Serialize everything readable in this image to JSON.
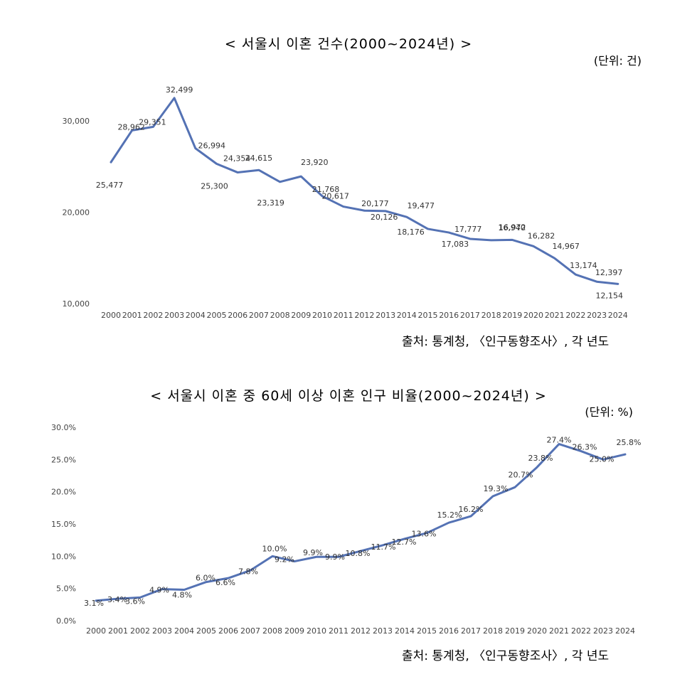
{
  "charts": {
    "divorce": {
      "title": "< 서울시 이혼 건수(2000~2024년) >",
      "unit": "(단위: 건)",
      "source": "출처: 통계청, 〈인구동향조사〉, 각 년도"
    },
    "elderly": {
      "title": "< 서울시 이혼 중 60세 이상 이혼 인구 비율(2000~2024년) >",
      "unit": "(단위: %)",
      "source": "출처: 통계청, 〈인구동향조사〉, 각 년도"
    }
  },
  "chart_data": [
    {
      "type": "line",
      "title": "< 서울시 이혼 건수(2000~2024년) >",
      "unit": "(단위: 건)",
      "categories": [
        "2000",
        "2001",
        "2002",
        "2003",
        "2004",
        "2005",
        "2006",
        "2007",
        "2008",
        "2009",
        "2010",
        "2011",
        "2012",
        "2013",
        "2014",
        "2015",
        "2016",
        "2017",
        "2018",
        "2019",
        "2020",
        "2021",
        "2022",
        "2023",
        "2024"
      ],
      "values": [
        25477,
        28962,
        29351,
        32499,
        26994,
        25300,
        24354,
        24615,
        23319,
        23920,
        21768,
        20617,
        20177,
        20126,
        19477,
        18176,
        17777,
        17083,
        16940,
        16972,
        16282,
        14967,
        13174,
        12397,
        12154
      ],
      "data_labels": [
        "25,477",
        "28,962",
        "29,351",
        "32,499",
        "26,994",
        "25,300",
        "24,354",
        "24,615",
        "23,319",
        "23,920",
        "21,768",
        "20,617",
        "20,177",
        "20,126",
        "19,477",
        "18,176",
        "17,777",
        "17,083",
        "16,940",
        "16,972",
        "16,282",
        "14,967",
        "13,174",
        "12,397",
        "12,154"
      ],
      "y_ticks": [
        10000,
        20000,
        30000
      ],
      "y_tick_labels": [
        "10,000",
        "20,000",
        "30,000"
      ],
      "ylim": [
        10000,
        30000
      ],
      "grid": false,
      "legend": "none",
      "line_color": "#5472B4"
    },
    {
      "type": "line",
      "title": "< 서울시 이혼 중 60세 이상 이혼 인구 비율(2000~2024년) >",
      "unit": "(단위: %)",
      "categories": [
        "2000",
        "2001",
        "2002",
        "2003",
        "2004",
        "2005",
        "2006",
        "2007",
        "2008",
        "2009",
        "2010",
        "2011",
        "2012",
        "2013",
        "2014",
        "2015",
        "2016",
        "2017",
        "2018",
        "2019",
        "2020",
        "2021",
        "2022",
        "2023",
        "2024"
      ],
      "values": [
        3.1,
        3.4,
        3.6,
        4.9,
        4.8,
        6.0,
        6.6,
        7.8,
        10.0,
        9.2,
        9.9,
        9.9,
        10.8,
        11.7,
        12.7,
        13.6,
        15.2,
        16.2,
        19.3,
        20.7,
        23.8,
        27.4,
        26.3,
        25.0,
        25.8
      ],
      "data_labels": [
        "3.1%",
        "3.4%",
        "3.6%",
        "4.9%",
        "4.8%",
        "6.0%",
        "6.6%",
        "7.8%",
        "10.0%",
        "9.2%",
        "9.9%",
        "9.9%",
        "10.8%",
        "11.7%",
        "12.7%",
        "13.6%",
        "15.2%",
        "16.2%",
        "19.3%",
        "20.7%",
        "23.8%",
        "27.4%",
        "26.3%",
        "25.0%",
        "25.8%"
      ],
      "y_ticks": [
        0,
        5,
        10,
        15,
        20,
        25,
        30
      ],
      "y_tick_labels": [
        "0.0%",
        "5.0%",
        "10.0%",
        "15.0%",
        "20.0%",
        "25.0%",
        "30.0%"
      ],
      "ylim": [
        0,
        30
      ],
      "grid": false,
      "legend": "none",
      "line_color": "#5472B4"
    }
  ]
}
